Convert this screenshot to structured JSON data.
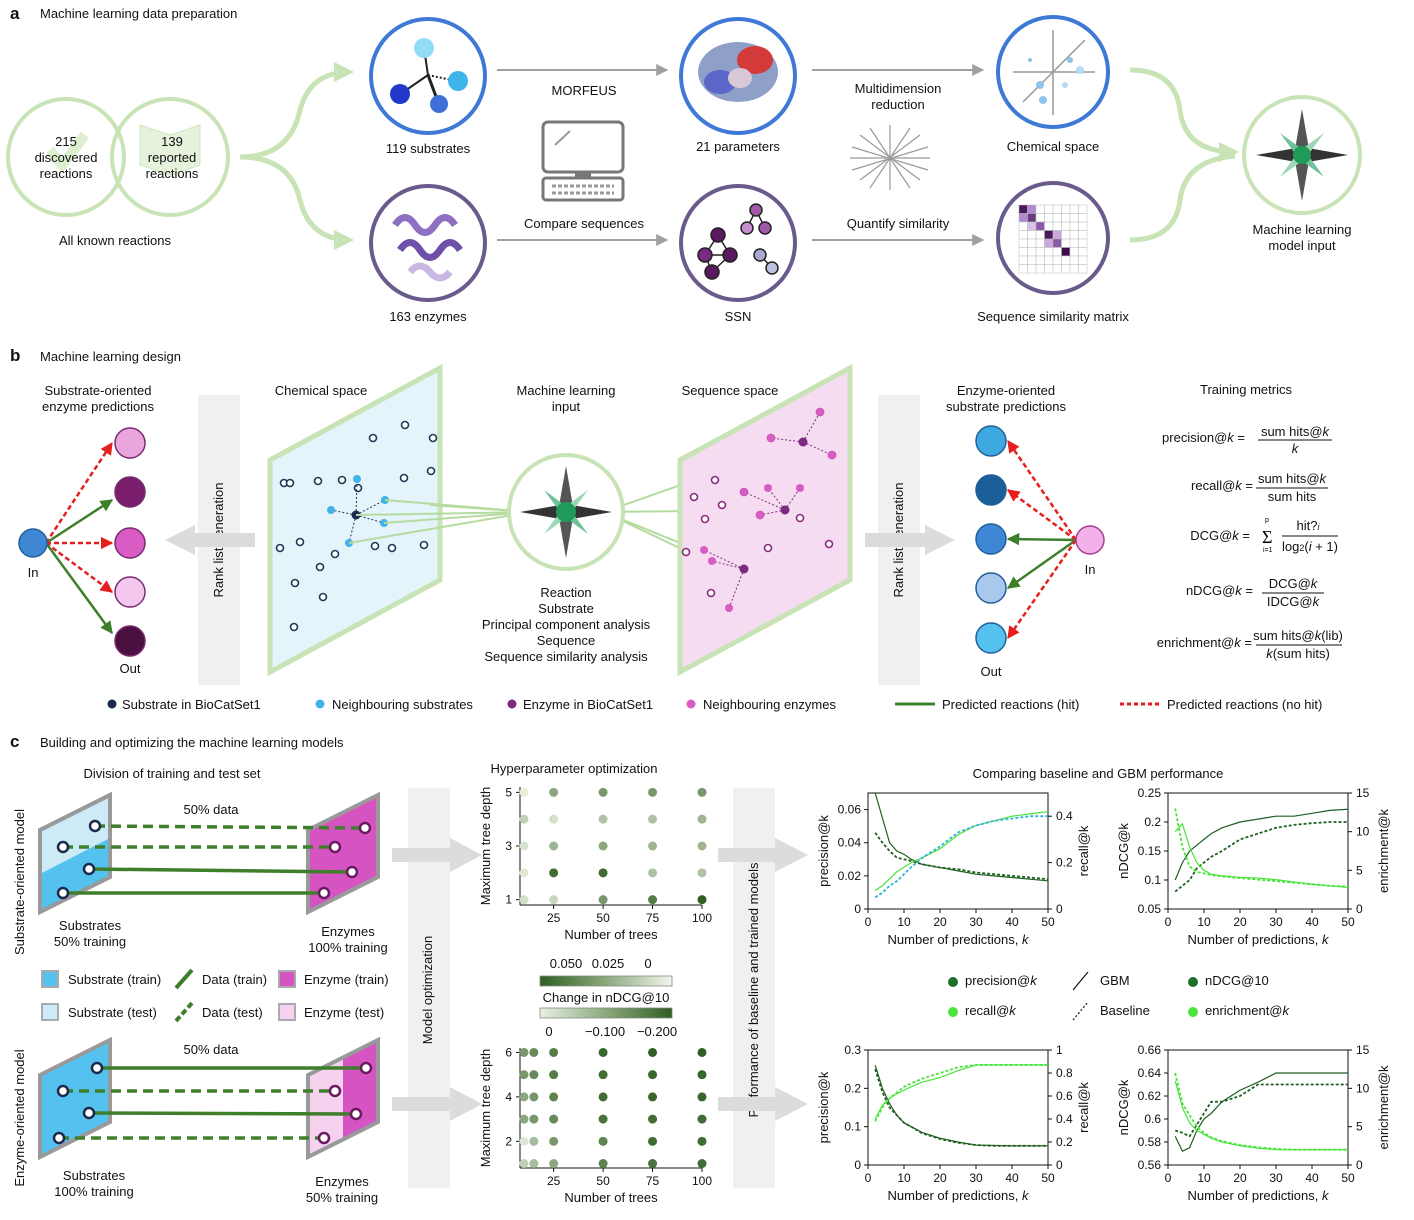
{
  "panel_a": {
    "letter": "a",
    "title": "Machine learning data preparation",
    "discovered": [
      "215",
      "discovered",
      "reactions"
    ],
    "reported": [
      "139",
      "reported",
      "reactions"
    ],
    "all_known": "All known reactions",
    "substrates": "119 substrates",
    "morfeus": "MORFEUS",
    "parameters": "21 parameters",
    "multidim": [
      "Multidimension",
      "reduction"
    ],
    "chemical_space": "Chemical space",
    "enzymes": "163 enzymes",
    "compare": "Compare sequences",
    "ssn": "SSN",
    "quantify": "Quantify similarity",
    "ssm": "Sequence similarity matrix",
    "ml_input": [
      "Machine learning",
      "model input"
    ]
  },
  "panel_b": {
    "letter": "b",
    "title": "Machine learning design",
    "substrate_oriented": [
      "Substrate-oriented",
      "enzyme predictions"
    ],
    "rank_list": "Rank list generation",
    "chemical_space": "Chemical space",
    "ml_input": [
      "Machine learning",
      "input"
    ],
    "sequence_space": "Sequence space",
    "enzyme_oriented": [
      "Enzyme-oriented",
      "substrate predictions"
    ],
    "training_metrics": "Training metrics",
    "in_label": "In",
    "out_label": "Out",
    "input_list": [
      "Reaction",
      "Substrate",
      "Principal component analysis",
      "Sequence",
      "Sequence similarity analysis"
    ],
    "metrics": {
      "precision": {
        "name": "precision@",
        "num": "sum hits@",
        "den": "k"
      },
      "recall": {
        "name": "recall@",
        "num": "sum hits@",
        "den": "sum hits"
      },
      "dcg": {
        "name": "DCG@",
        "num": "hit?",
        "den": "log",
        "sum_top": "p",
        "sum_bot": "i=1"
      },
      "ndcg": {
        "name": "nDCG@",
        "num": "DCG@",
        "den": "IDCG@"
      },
      "enrichment": {
        "name": "enrichment@",
        "num": "sum hits@",
        "num_tail": "(lib)",
        "den": "(sum hits)"
      }
    },
    "legend": {
      "substrate": "Substrate in BioCatSet1",
      "neighbouring_substrates": "Neighbouring substrates",
      "enzyme": "Enzyme in BioCatSet1",
      "neighbouring_enzymes": "Neighbouring enzymes",
      "hit": "Predicted reactions (hit)",
      "nohit": "Predicted reactions (no hit)"
    },
    "substrate_circle_colors": [
      "#e8a6dc",
      "#7a1e6c",
      "#d85cc4",
      "#f4c8ee",
      "#4a1040"
    ],
    "enzyme_circle_colors": [
      "#3da9e0",
      "#1b5f9a",
      "#3f86d4",
      "#a9c9ec",
      "#55c1ee"
    ]
  },
  "panel_c": {
    "letter": "c",
    "title": "Building and optimizing the machine learning models",
    "division": "Division of training and test set",
    "substrate_model": "Substrate-oriented model",
    "enzyme_model": "Enzyme-oriented model",
    "half_data": "50% data",
    "sub_train_top": [
      "Substrates",
      "50% training"
    ],
    "enz_train_top": [
      "Enzymes",
      "100% training"
    ],
    "sub_train_bot": [
      "Substrates",
      "100% training"
    ],
    "enz_train_bot": [
      "Enzymes",
      "50% training"
    ],
    "legend": {
      "sub_train": "Substrate (train)",
      "data_train": "Data (train)",
      "enz_train": "Enzyme (train)",
      "sub_test": "Substrate (test)",
      "data_test": "Data (test)",
      "enz_test": "Enzyme (test)"
    },
    "model_optimization": "Model optimization",
    "hyperparameter": "Hyperparameter optimization",
    "performance": "Performance of baseline and trained models",
    "comparing": "Comparing baseline and GBM performance",
    "colorbar_label": "Change in nDCG@10",
    "colorbar_top_ticks": [
      "0.050",
      "0.025",
      "0"
    ],
    "colorbar_bot_ticks": [
      "0",
      "−0.100",
      "−0.200"
    ],
    "legend_lines": {
      "precision": "precision@",
      "recall": "recall@",
      "gbm": "GBM",
      "baseline": "Baseline",
      "ndcg": "nDCG@10",
      "enrichment": "enrichment@"
    }
  },
  "chart_data": [
    {
      "type": "scatter",
      "title": "Hyperparameter optimization",
      "xlabel": "Number of trees",
      "ylabel": "Maximum tree depth",
      "x_ticks": [
        25,
        50,
        75,
        100
      ],
      "y_ticks": [
        1,
        3,
        5
      ],
      "x": [
        10,
        25,
        50,
        75,
        100
      ],
      "y": [
        1,
        2,
        3,
        4,
        5
      ],
      "colorbar": "Change in nDCG@10",
      "colorbar_range": [
        0.05,
        0
      ],
      "z": [
        [
          0.005,
          0.008,
          0.03,
          0.04,
          0.05
        ],
        [
          0.002,
          0.045,
          0.045,
          0.015,
          0.015
        ],
        [
          0.004,
          0.02,
          0.025,
          0.02,
          0.02
        ],
        [
          0.01,
          0.005,
          0.015,
          0.015,
          0.02
        ],
        [
          0.0,
          0.025,
          0.03,
          0.03,
          0.03
        ]
      ]
    },
    {
      "type": "scatter",
      "xlabel": "Number of trees",
      "ylabel": "Maximum tree depth",
      "x_ticks": [
        25,
        50,
        75,
        100
      ],
      "y_ticks": [
        2,
        4,
        6
      ],
      "x": [
        10,
        15,
        25,
        50,
        75,
        100
      ],
      "y": [
        1,
        2,
        3,
        4,
        5,
        6
      ],
      "colorbar": "Change in nDCG@10",
      "colorbar_range": [
        0,
        -0.2
      ],
      "z": [
        [
          -0.04,
          -0.07,
          -0.1,
          -0.15,
          -0.17,
          -0.18
        ],
        [
          -0.01,
          -0.07,
          -0.12,
          -0.15,
          -0.18,
          -0.18
        ],
        [
          -0.1,
          -0.12,
          -0.14,
          -0.17,
          -0.18,
          -0.18
        ],
        [
          -0.1,
          -0.12,
          -0.15,
          -0.18,
          -0.19,
          -0.19
        ],
        [
          -0.12,
          -0.14,
          -0.16,
          -0.18,
          -0.19,
          -0.19
        ],
        [
          -0.12,
          -0.14,
          -0.16,
          -0.19,
          -0.2,
          -0.2
        ]
      ]
    },
    {
      "type": "line",
      "xlabel": "Number of predictions, k",
      "ylabel": "precision@k",
      "y2label": "recall@k",
      "x": [
        2,
        4,
        6,
        8,
        10,
        12,
        15,
        20,
        25,
        30,
        35,
        40,
        45,
        50
      ],
      "xlim": [
        0,
        50
      ],
      "ylim": [
        0,
        0.07
      ],
      "y2lim": [
        0,
        0.5
      ],
      "x_ticks": [
        0,
        10,
        20,
        30,
        40,
        50
      ],
      "y_ticks": [
        0,
        0.02,
        0.04,
        0.06
      ],
      "y2_ticks": [
        0,
        0.2,
        0.4
      ],
      "series": [
        {
          "name": "precision@k GBM",
          "axis": "left",
          "values": [
            0.07,
            0.055,
            0.04,
            0.035,
            0.033,
            0.03,
            0.027,
            0.025,
            0.023,
            0.021,
            0.02,
            0.019,
            0.018,
            0.017
          ]
        },
        {
          "name": "precision@k Baseline",
          "axis": "left",
          "values": [
            0.046,
            0.04,
            0.035,
            0.031,
            0.03,
            0.029,
            0.027,
            0.025,
            0.024,
            0.022,
            0.021,
            0.02,
            0.019,
            0.018
          ]
        },
        {
          "name": "recall@k GBM",
          "axis": "right",
          "values": [
            0.08,
            0.1,
            0.13,
            0.16,
            0.18,
            0.2,
            0.22,
            0.26,
            0.32,
            0.36,
            0.38,
            0.4,
            0.41,
            0.42
          ]
        },
        {
          "name": "recall@k Baseline",
          "axis": "right",
          "values": [
            0.05,
            0.07,
            0.1,
            0.12,
            0.15,
            0.18,
            0.22,
            0.27,
            0.33,
            0.36,
            0.38,
            0.39,
            0.4,
            0.4
          ]
        }
      ]
    },
    {
      "type": "line",
      "xlabel": "Number of predictions, k",
      "ylabel": "nDCG@k",
      "y2label": "enrichment@k",
      "x": [
        2,
        4,
        6,
        8,
        10,
        12,
        15,
        20,
        25,
        30,
        35,
        40,
        45,
        50
      ],
      "xlim": [
        0,
        50
      ],
      "ylim": [
        0.05,
        0.25
      ],
      "y2lim": [
        0,
        15
      ],
      "x_ticks": [
        0,
        10,
        20,
        30,
        40,
        50
      ],
      "y_ticks": [
        0.05,
        0.1,
        0.15,
        0.2,
        0.25
      ],
      "y2_ticks": [
        0,
        5,
        10,
        15
      ],
      "series": [
        {
          "name": "nDCG@k GBM",
          "axis": "left",
          "values": [
            0.1,
            0.13,
            0.15,
            0.16,
            0.17,
            0.18,
            0.19,
            0.2,
            0.205,
            0.21,
            0.21,
            0.215,
            0.22,
            0.222
          ]
        },
        {
          "name": "nDCG@k Baseline",
          "axis": "left",
          "values": [
            0.08,
            0.09,
            0.1,
            0.12,
            0.13,
            0.14,
            0.15,
            0.17,
            0.18,
            0.19,
            0.195,
            0.198,
            0.2,
            0.2
          ]
        },
        {
          "name": "enrichment@k GBM",
          "axis": "right",
          "values": [
            10,
            11,
            8,
            6,
            5,
            4.5,
            4.3,
            4.1,
            4,
            3.8,
            3.5,
            3.2,
            3,
            2.8
          ]
        },
        {
          "name": "enrichment@k Baseline",
          "axis": "right",
          "values": [
            13,
            8,
            5.5,
            4.8,
            4.6,
            4.4,
            4.2,
            4,
            3.8,
            3.6,
            3.4,
            3.2,
            3,
            2.9
          ]
        }
      ]
    },
    {
      "type": "line",
      "xlabel": "Number of predictions, k",
      "ylabel": "precision@k",
      "y2label": "recall@k",
      "x": [
        2,
        4,
        6,
        8,
        10,
        12,
        15,
        20,
        25,
        30,
        35,
        40,
        45,
        50
      ],
      "xlim": [
        0,
        50
      ],
      "ylim": [
        0,
        0.3
      ],
      "y2lim": [
        0,
        1.0
      ],
      "x_ticks": [
        0,
        10,
        20,
        30,
        40,
        50
      ],
      "y_ticks": [
        0,
        0.1,
        0.2,
        0.3
      ],
      "y2_ticks": [
        0,
        0.2,
        0.4,
        0.6,
        0.8,
        1.0
      ],
      "series": [
        {
          "name": "precision@k GBM",
          "axis": "left",
          "values": [
            0.26,
            0.2,
            0.16,
            0.13,
            0.11,
            0.1,
            0.085,
            0.07,
            0.06,
            0.052,
            0.051,
            0.05,
            0.05,
            0.05
          ]
        },
        {
          "name": "precision@k Baseline",
          "axis": "left",
          "values": [
            0.25,
            0.19,
            0.15,
            0.13,
            0.11,
            0.1,
            0.083,
            0.068,
            0.058,
            0.052,
            0.05,
            0.05,
            0.05,
            0.05
          ]
        },
        {
          "name": "recall@k GBM",
          "axis": "right",
          "values": [
            0.4,
            0.52,
            0.58,
            0.62,
            0.65,
            0.68,
            0.72,
            0.76,
            0.82,
            0.87,
            0.87,
            0.87,
            0.87,
            0.87
          ]
        },
        {
          "name": "recall@k Baseline",
          "axis": "right",
          "values": [
            0.38,
            0.5,
            0.58,
            0.63,
            0.68,
            0.71,
            0.75,
            0.8,
            0.85,
            0.87,
            0.87,
            0.87,
            0.87,
            0.87
          ]
        }
      ]
    },
    {
      "type": "line",
      "xlabel": "Number of predictions, k",
      "ylabel": "nDCG@k",
      "y2label": "enrichment@k",
      "x": [
        2,
        4,
        6,
        8,
        10,
        12,
        15,
        20,
        25,
        30,
        35,
        40,
        45,
        50
      ],
      "xlim": [
        0,
        50
      ],
      "ylim": [
        0.56,
        0.66
      ],
      "y2lim": [
        0,
        15
      ],
      "x_ticks": [
        0,
        10,
        20,
        30,
        40,
        50
      ],
      "y_ticks": [
        0.56,
        0.58,
        0.6,
        0.62,
        0.64,
        0.66
      ],
      "y2_ticks": [
        0,
        5,
        10,
        15
      ],
      "series": [
        {
          "name": "nDCG@k GBM",
          "axis": "left",
          "values": [
            0.585,
            0.572,
            0.575,
            0.59,
            0.6,
            0.605,
            0.615,
            0.625,
            0.632,
            0.64,
            0.64,
            0.64,
            0.64,
            0.64
          ]
        },
        {
          "name": "nDCG@k Baseline",
          "axis": "left",
          "values": [
            0.59,
            0.588,
            0.585,
            0.595,
            0.605,
            0.615,
            0.615,
            0.62,
            0.63,
            0.63,
            0.63,
            0.63,
            0.63,
            0.63
          ]
        },
        {
          "name": "enrichment@k GBM",
          "axis": "right",
          "values": [
            11,
            7.5,
            5.5,
            4.5,
            4,
            3.5,
            3,
            2.5,
            2.2,
            2,
            2,
            2,
            2,
            2
          ]
        },
        {
          "name": "enrichment@k Baseline",
          "axis": "right",
          "values": [
            12,
            8,
            6.5,
            5,
            4.2,
            3.6,
            3.1,
            2.6,
            2.3,
            2.1,
            2,
            2,
            2,
            2
          ]
        }
      ]
    }
  ],
  "colors": {
    "green_light": "#c8e3b5",
    "green_dark": "#3f7f2c",
    "blue_ring": "#3f79d6",
    "purple_ring": "#6b5a8c",
    "red_dash": "#e61e1e",
    "line_dark": "#1f5f20",
    "line_light": "#49e33a",
    "line_cyan": "#2fb4d8"
  }
}
